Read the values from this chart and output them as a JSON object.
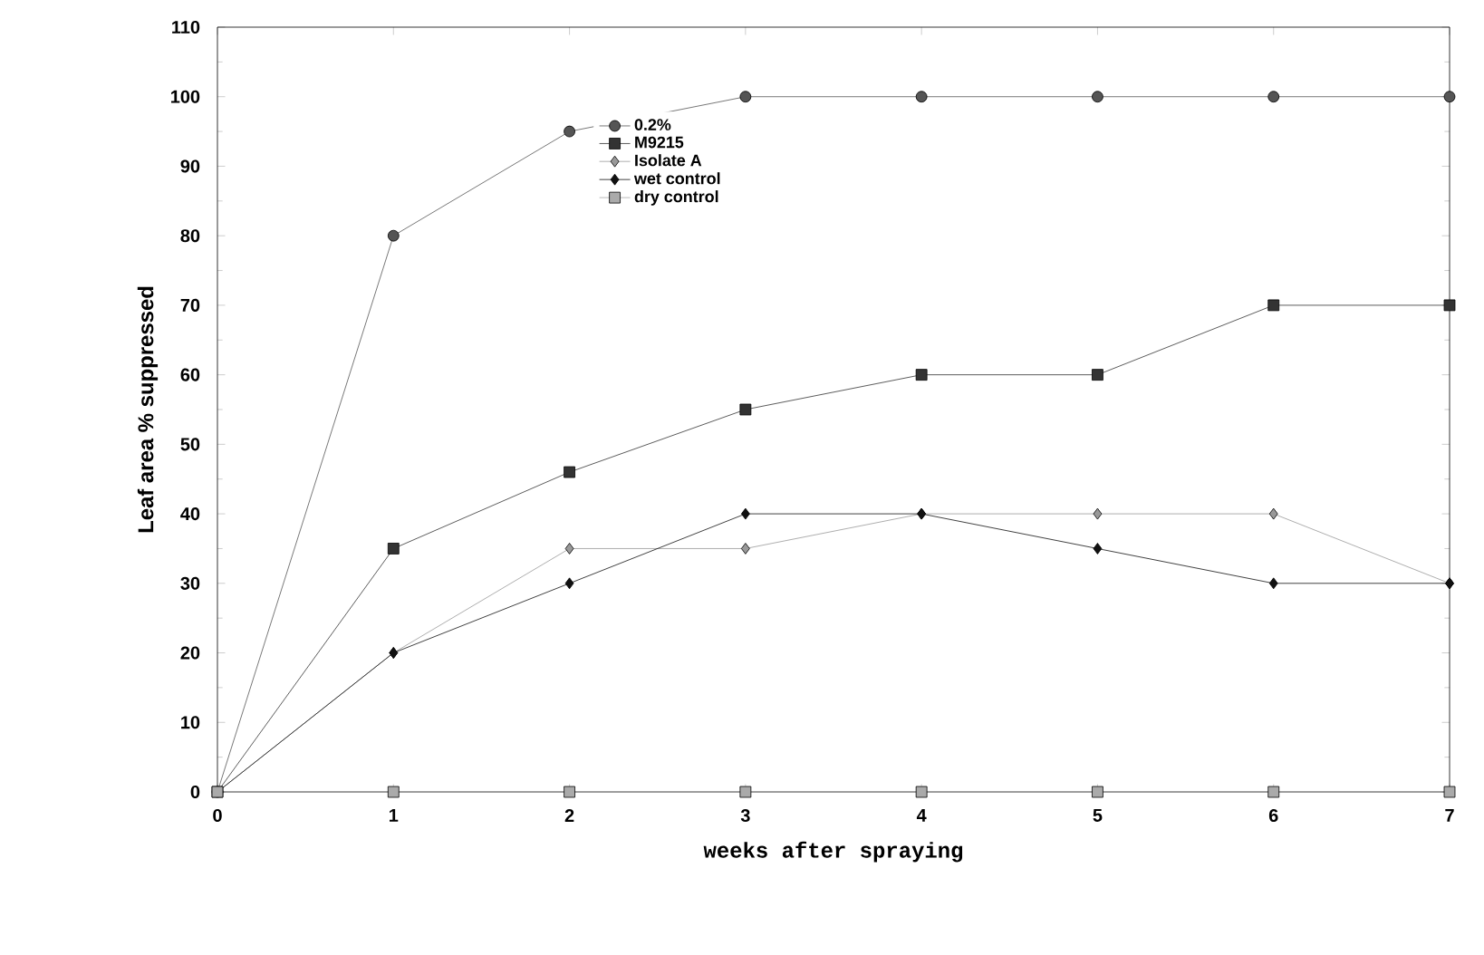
{
  "chart_data": {
    "type": "line",
    "xlabel": "weeks after spraying",
    "ylabel": "Leaf area % suppressed",
    "x": [
      0,
      1,
      2,
      3,
      4,
      5,
      6,
      7
    ],
    "series": [
      {
        "name": "0.2%",
        "color": "#555555",
        "marker": "circle",
        "values": [
          0,
          80,
          95,
          100,
          100,
          100,
          100,
          100
        ]
      },
      {
        "name": "M9215",
        "color": "#333333",
        "marker": "square",
        "values": [
          0,
          35,
          46,
          55,
          60,
          60,
          70,
          70
        ]
      },
      {
        "name": "Isolate A",
        "color": "#999999",
        "marker": "diamond",
        "values": [
          0,
          20,
          35,
          35,
          40,
          40,
          40,
          30
        ]
      },
      {
        "name": "wet control",
        "color": "#111111",
        "marker": "diamond",
        "values": [
          0,
          20,
          30,
          40,
          40,
          35,
          30,
          30
        ]
      },
      {
        "name": "dry control",
        "color": "#aaaaaa",
        "marker": "square",
        "values": [
          0,
          0,
          0,
          0,
          0,
          0,
          0,
          0
        ]
      }
    ],
    "xlim": [
      0,
      7
    ],
    "ylim": [
      0,
      110
    ],
    "xticks": [
      0,
      1,
      2,
      3,
      4,
      5,
      6,
      7
    ],
    "yticks": [
      0,
      10,
      20,
      30,
      40,
      50,
      60,
      70,
      80,
      90,
      100,
      110
    ],
    "grid": false,
    "legend": "top left"
  }
}
